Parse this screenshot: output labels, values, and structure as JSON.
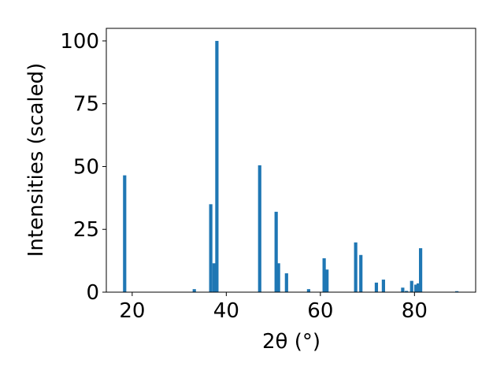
{
  "chart_data": {
    "type": "bar",
    "xlabel": "2θ (°)",
    "ylabel": "Intensities (scaled)",
    "xlim": [
      14.5,
      93.0
    ],
    "ylim": [
      0,
      105
    ],
    "xticks": [
      20,
      40,
      60,
      80
    ],
    "yticks": [
      0,
      25,
      50,
      75,
      100
    ],
    "bar_width": 0.7,
    "grid": false,
    "bar_color": "#1f77b4",
    "x": [
      18.4,
      33.2,
      36.7,
      37.4,
      38.0,
      47.1,
      50.6,
      51.1,
      52.8,
      57.5,
      60.8,
      61.4,
      67.5,
      68.6,
      71.9,
      73.4,
      77.5,
      78.3,
      79.4,
      80.3,
      80.8,
      81.3,
      89.0
    ],
    "values": [
      46.5,
      1.2,
      35.0,
      11.5,
      100.0,
      50.5,
      32.0,
      11.5,
      7.5,
      1.2,
      13.5,
      9.0,
      19.8,
      14.8,
      3.8,
      5.0,
      1.8,
      0.5,
      4.5,
      3.0,
      3.5,
      17.5,
      0.4
    ]
  }
}
